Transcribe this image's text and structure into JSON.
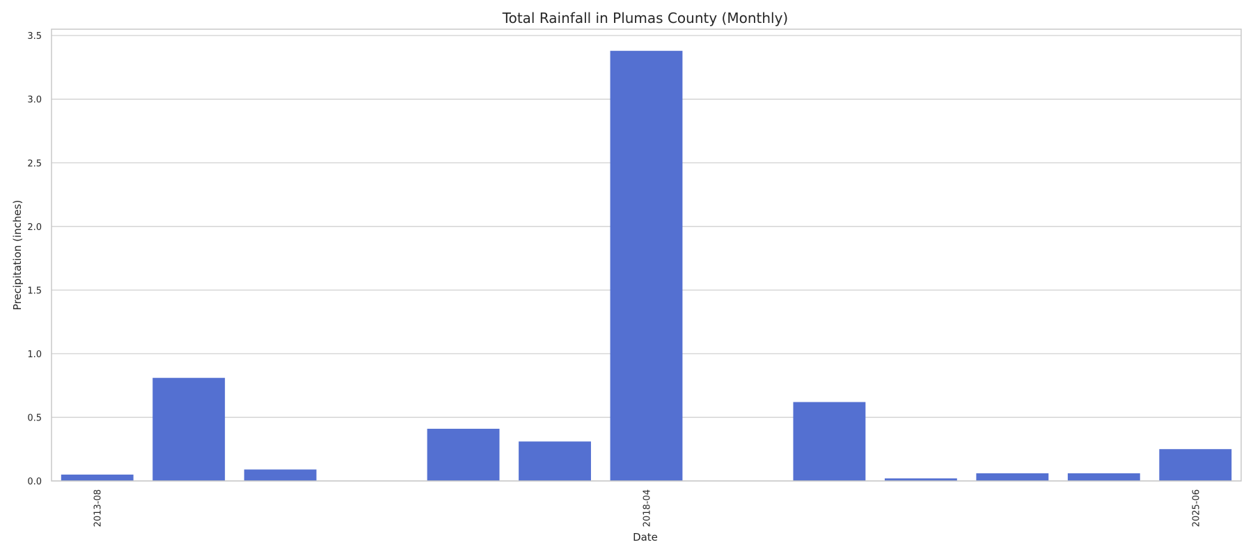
{
  "chart_data": {
    "type": "bar",
    "title": "Total Rainfall in Plumas County (Monthly)",
    "xlabel": "Date",
    "ylabel": "Precipitation (inches)",
    "ylim": [
      0,
      3.55
    ],
    "yticks": [
      "0.0",
      "0.5",
      "1.0",
      "1.5",
      "2.0",
      "2.5",
      "3.0",
      "3.5"
    ],
    "categories": [
      "2013-08",
      "",
      "",
      "",
      "",
      "",
      "2018-04",
      "",
      "",
      "",
      "",
      "",
      "2025-06"
    ],
    "values": [
      0.05,
      0.81,
      0.09,
      0.0,
      0.41,
      0.31,
      3.38,
      0.0,
      0.62,
      0.02,
      0.06,
      0.06,
      0.25
    ],
    "grid": true,
    "bar_color": "#5470d1"
  }
}
